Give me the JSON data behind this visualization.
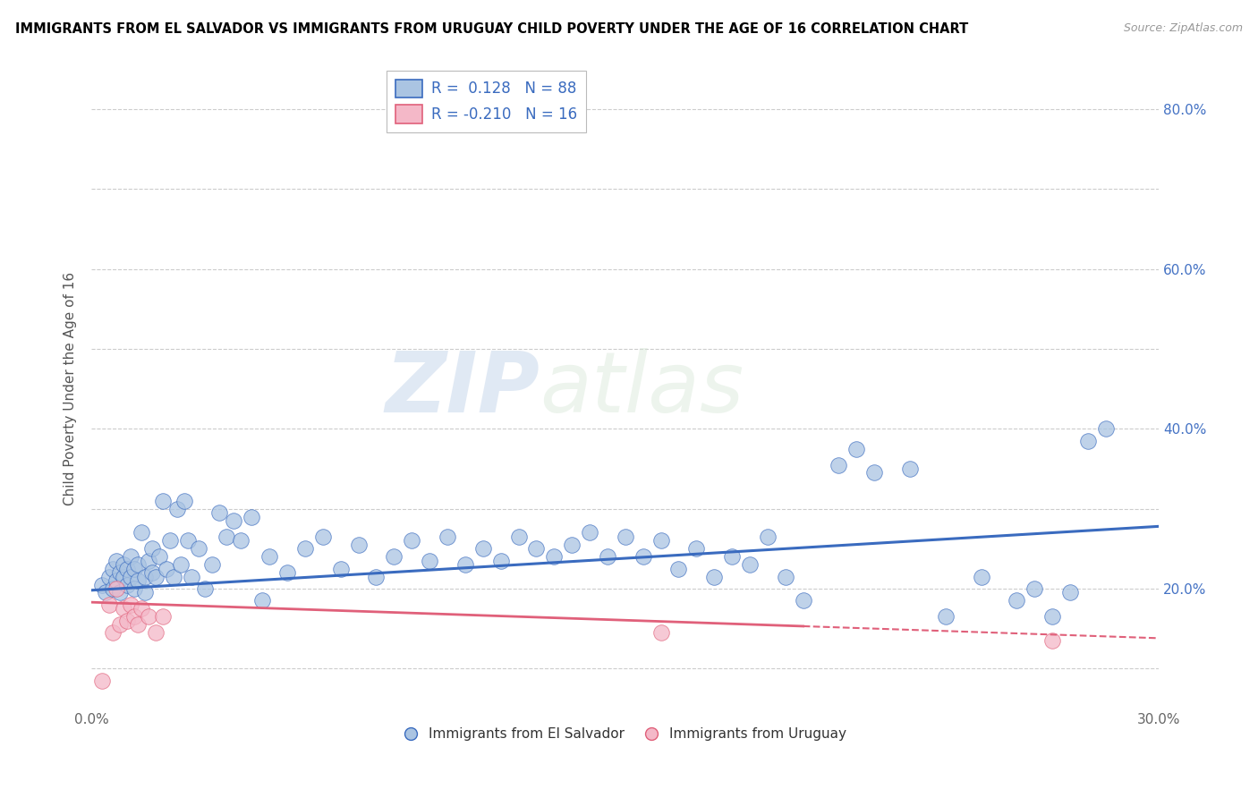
{
  "title": "IMMIGRANTS FROM EL SALVADOR VS IMMIGRANTS FROM URUGUAY CHILD POVERTY UNDER THE AGE OF 16 CORRELATION CHART",
  "source": "Source: ZipAtlas.com",
  "ylabel": "Child Poverty Under the Age of 16",
  "xlim": [
    0.0,
    0.3
  ],
  "ylim": [
    0.05,
    0.85
  ],
  "x_tick_positions": [
    0.0,
    0.05,
    0.1,
    0.15,
    0.2,
    0.25,
    0.3
  ],
  "x_tick_labels": [
    "0.0%",
    "",
    "",
    "",
    "",
    "",
    "30.0%"
  ],
  "y_tick_positions": [
    0.1,
    0.2,
    0.3,
    0.4,
    0.5,
    0.6,
    0.7,
    0.8
  ],
  "y_tick_labels_right": [
    "",
    "20.0%",
    "",
    "40.0%",
    "",
    "60.0%",
    "",
    "80.0%"
  ],
  "r_salvador": 0.128,
  "n_salvador": 88,
  "r_uruguay": -0.21,
  "n_uruguay": 16,
  "legend_label_1": "Immigrants from El Salvador",
  "legend_label_2": "Immigrants from Uruguay",
  "scatter_color_salvador": "#aac4e2",
  "scatter_color_uruguay": "#f4b8c8",
  "line_color_salvador": "#3a6bbf",
  "line_color_uruguay": "#e0607a",
  "watermark_zip": "ZIP",
  "watermark_atlas": "atlas",
  "trend_line_es_x0": 0.0,
  "trend_line_es_y0": 0.198,
  "trend_line_es_x1": 0.3,
  "trend_line_es_y1": 0.278,
  "trend_line_uy_x0": 0.0,
  "trend_line_uy_y0": 0.183,
  "trend_line_uy_x1": 0.3,
  "trend_line_uy_y1": 0.138,
  "trend_line_uy_solid_end": 0.2,
  "el_salvador_x": [
    0.003,
    0.004,
    0.005,
    0.006,
    0.006,
    0.007,
    0.007,
    0.008,
    0.008,
    0.009,
    0.009,
    0.01,
    0.01,
    0.011,
    0.011,
    0.012,
    0.012,
    0.013,
    0.013,
    0.014,
    0.015,
    0.015,
    0.016,
    0.017,
    0.017,
    0.018,
    0.019,
    0.02,
    0.021,
    0.022,
    0.023,
    0.024,
    0.025,
    0.026,
    0.027,
    0.028,
    0.03,
    0.032,
    0.034,
    0.036,
    0.038,
    0.04,
    0.042,
    0.045,
    0.048,
    0.05,
    0.055,
    0.06,
    0.065,
    0.07,
    0.075,
    0.08,
    0.085,
    0.09,
    0.095,
    0.1,
    0.105,
    0.11,
    0.115,
    0.12,
    0.125,
    0.13,
    0.135,
    0.14,
    0.145,
    0.15,
    0.155,
    0.16,
    0.165,
    0.17,
    0.175,
    0.18,
    0.185,
    0.19,
    0.195,
    0.2,
    0.21,
    0.215,
    0.22,
    0.23,
    0.24,
    0.25,
    0.26,
    0.265,
    0.27,
    0.275,
    0.28,
    0.285
  ],
  "el_salvador_y": [
    0.205,
    0.195,
    0.215,
    0.2,
    0.225,
    0.21,
    0.235,
    0.195,
    0.22,
    0.215,
    0.23,
    0.205,
    0.225,
    0.215,
    0.24,
    0.2,
    0.225,
    0.21,
    0.23,
    0.27,
    0.195,
    0.215,
    0.235,
    0.22,
    0.25,
    0.215,
    0.24,
    0.31,
    0.225,
    0.26,
    0.215,
    0.3,
    0.23,
    0.31,
    0.26,
    0.215,
    0.25,
    0.2,
    0.23,
    0.295,
    0.265,
    0.285,
    0.26,
    0.29,
    0.185,
    0.24,
    0.22,
    0.25,
    0.265,
    0.225,
    0.255,
    0.215,
    0.24,
    0.26,
    0.235,
    0.265,
    0.23,
    0.25,
    0.235,
    0.265,
    0.25,
    0.24,
    0.255,
    0.27,
    0.24,
    0.265,
    0.24,
    0.26,
    0.225,
    0.25,
    0.215,
    0.24,
    0.23,
    0.265,
    0.215,
    0.185,
    0.355,
    0.375,
    0.345,
    0.35,
    0.165,
    0.215,
    0.185,
    0.2,
    0.165,
    0.195,
    0.385,
    0.4
  ],
  "uruguay_x": [
    0.003,
    0.005,
    0.006,
    0.007,
    0.008,
    0.009,
    0.01,
    0.011,
    0.012,
    0.013,
    0.014,
    0.016,
    0.018,
    0.02,
    0.16,
    0.27
  ],
  "uruguay_y": [
    0.085,
    0.18,
    0.145,
    0.2,
    0.155,
    0.175,
    0.16,
    0.18,
    0.165,
    0.155,
    0.175,
    0.165,
    0.145,
    0.165,
    0.145,
    0.135
  ]
}
